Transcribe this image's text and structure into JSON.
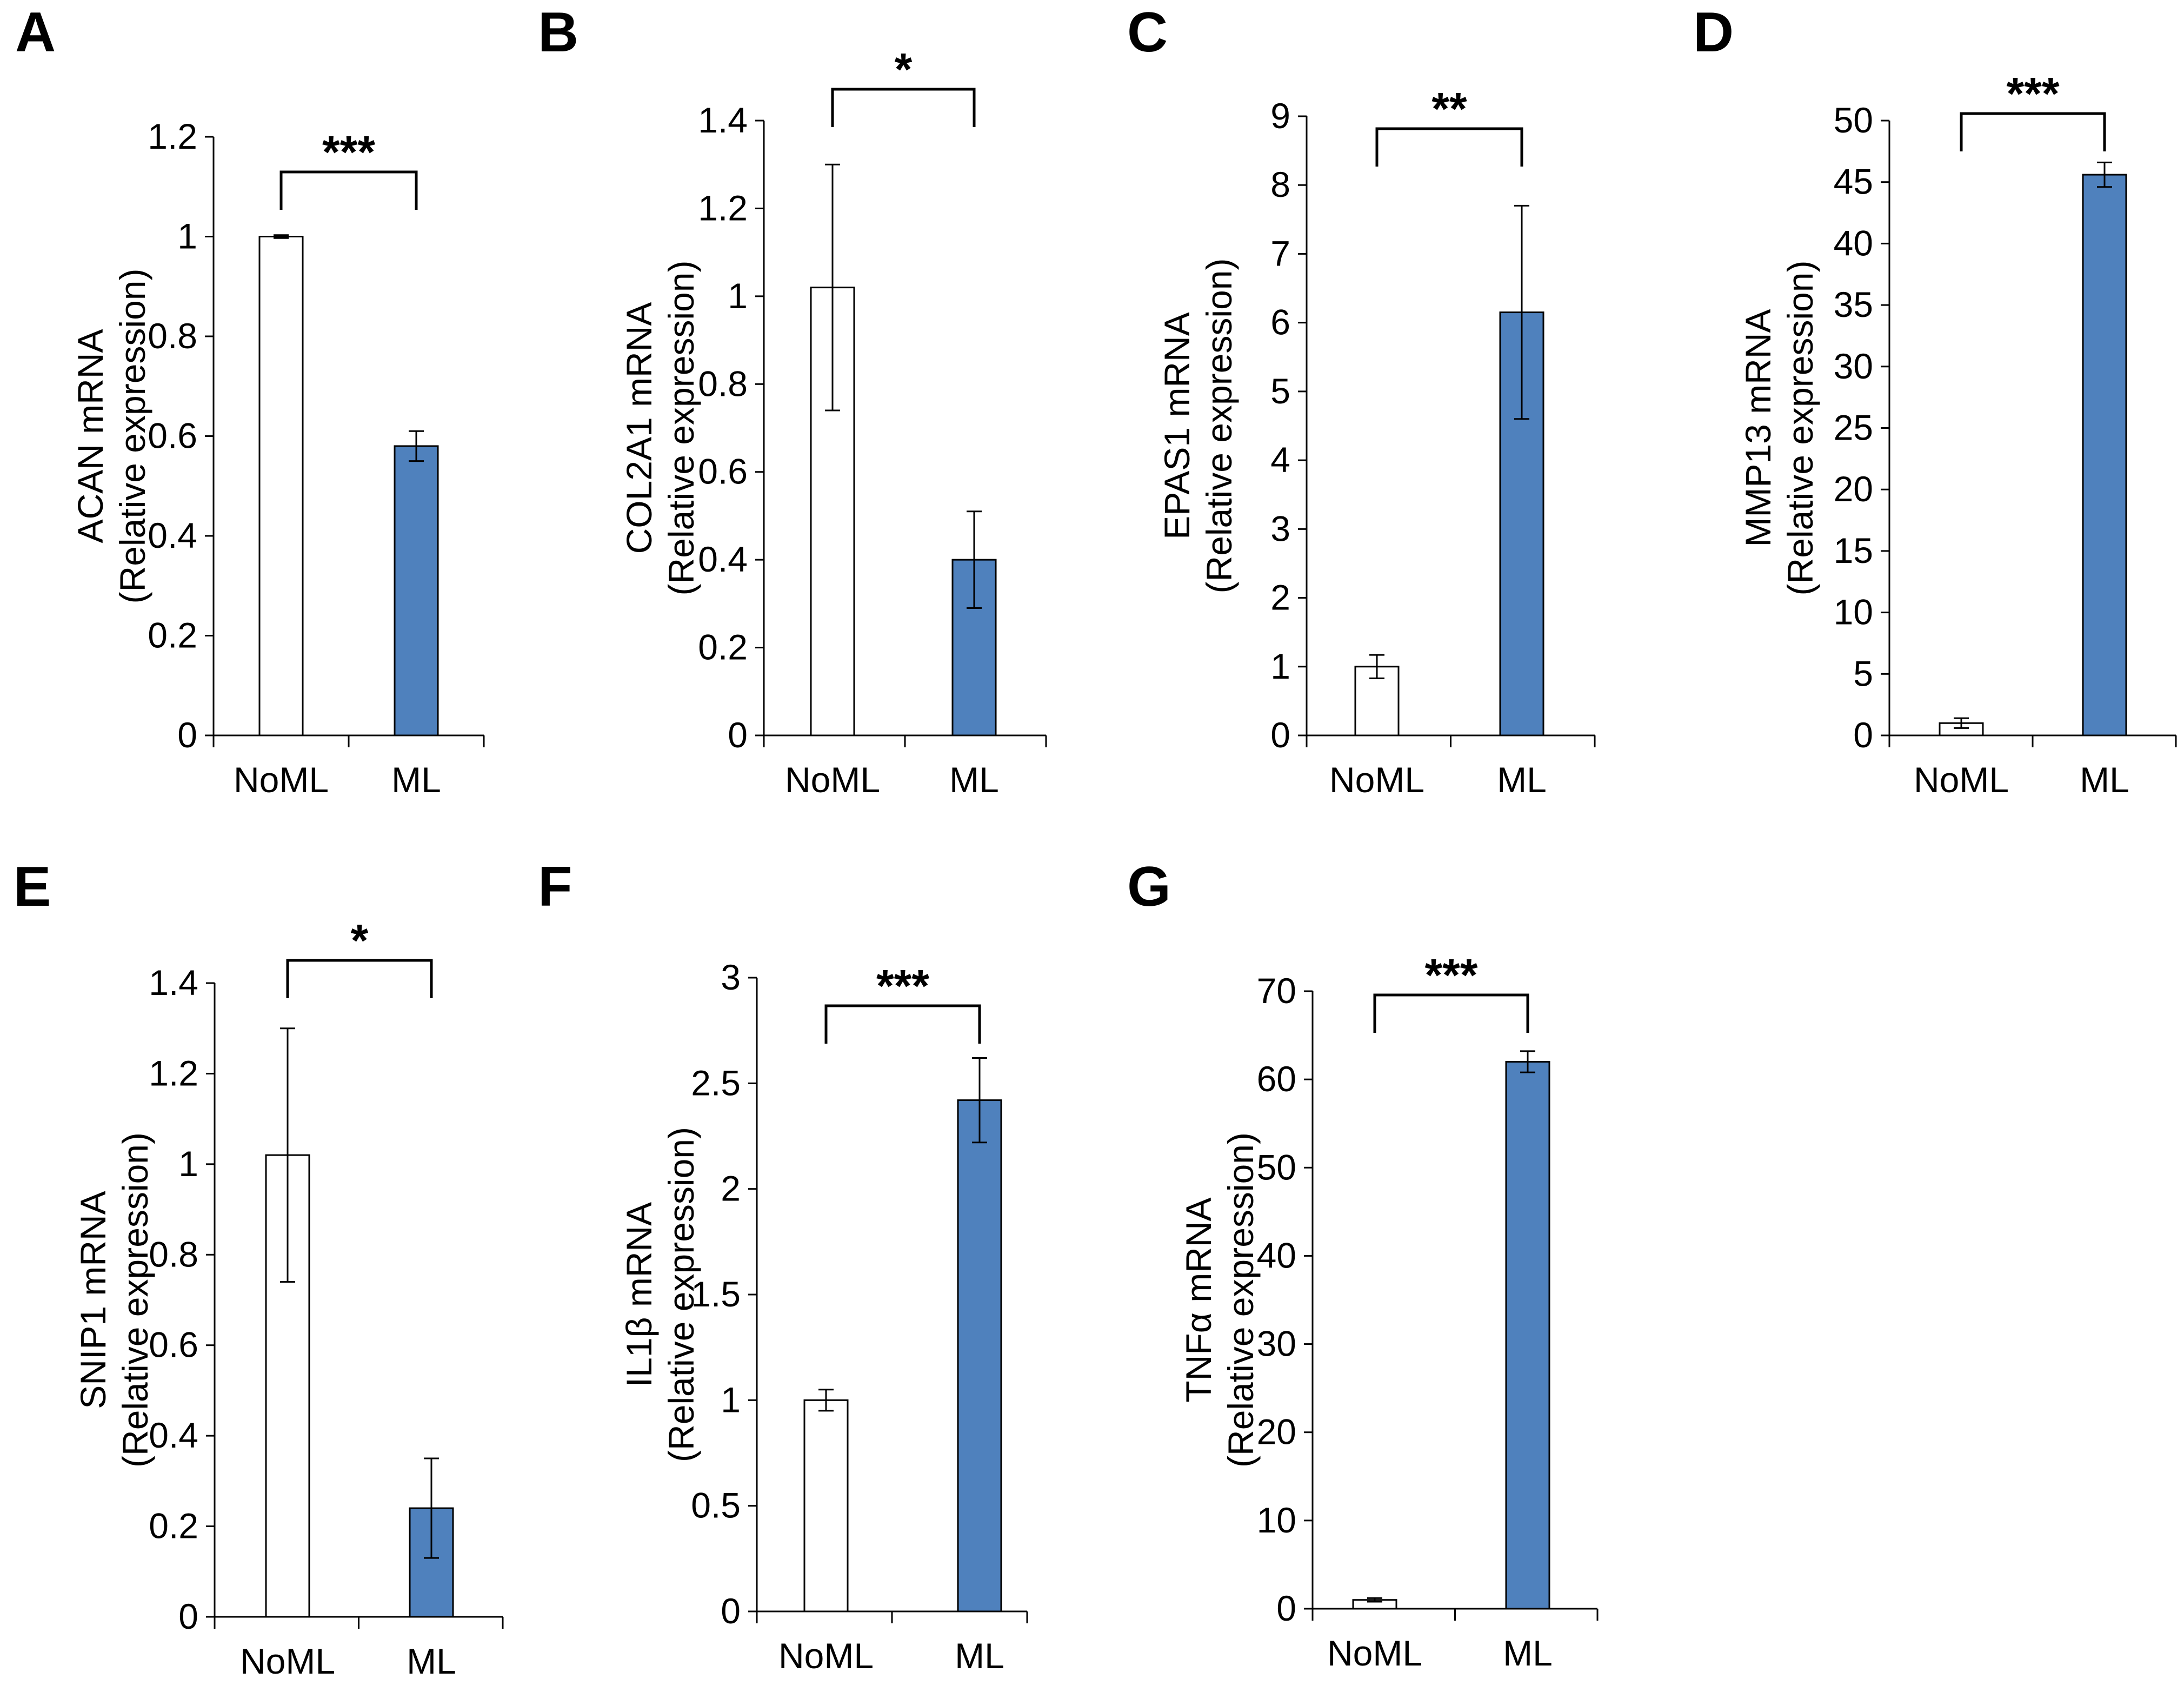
{
  "colors": {
    "noml": "#ffffff",
    "ml": "#4f81bd",
    "stroke": "#000000"
  },
  "chart_data": [
    {
      "panel": "A",
      "type": "bar",
      "categories": [
        "NoML",
        "ML"
      ],
      "values": [
        1.0,
        0.58
      ],
      "errors": [
        0.003,
        0.03
      ],
      "ylim": [
        0,
        1.2
      ],
      "yticks": [
        "0",
        "0.2",
        "0.4",
        "0.6",
        "0.8",
        "1",
        "1.2"
      ],
      "ylabel": [
        "ACAN mRNA",
        "(Relative expression)"
      ],
      "significance": "***"
    },
    {
      "panel": "B",
      "type": "bar",
      "categories": [
        "NoML",
        "ML"
      ],
      "values": [
        1.02,
        0.4
      ],
      "errors": [
        0.28,
        0.11
      ],
      "ylim": [
        0,
        1.4
      ],
      "yticks": [
        "0",
        "0.2",
        "0.4",
        "0.6",
        "0.8",
        "1",
        "1.2",
        "1.4"
      ],
      "ylabel": [
        "COL2A1 mRNA",
        "(Relative expression)"
      ],
      "significance": "*"
    },
    {
      "panel": "C",
      "type": "bar",
      "categories": [
        "NoML",
        "ML"
      ],
      "values": [
        1.0,
        6.15
      ],
      "errors": [
        0.17,
        1.55
      ],
      "ylim": [
        0,
        9
      ],
      "yticks": [
        "0",
        "1",
        "2",
        "3",
        "4",
        "5",
        "6",
        "7",
        "8",
        "9"
      ],
      "ylabel": [
        "EPAS1 mRNA",
        "(Relative expression)"
      ],
      "significance": "**"
    },
    {
      "panel": "D",
      "type": "bar",
      "categories": [
        "NoML",
        "ML"
      ],
      "values": [
        1.0,
        45.6
      ],
      "errors": [
        0.4,
        1.0
      ],
      "ylim": [
        0,
        50
      ],
      "yticks": [
        "0",
        "5",
        "10",
        "15",
        "20",
        "25",
        "30",
        "35",
        "40",
        "45",
        "50"
      ],
      "ylabel": [
        "MMP13 mRNA",
        "(Relative expression)"
      ],
      "significance": "***"
    },
    {
      "panel": "E",
      "type": "bar",
      "categories": [
        "NoML",
        "ML"
      ],
      "values": [
        1.02,
        0.24
      ],
      "errors": [
        0.28,
        0.11
      ],
      "ylim": [
        0,
        1.4
      ],
      "yticks": [
        "0",
        "0.2",
        "0.4",
        "0.6",
        "0.8",
        "1",
        "1.2",
        "1.4"
      ],
      "ylabel": [
        "SNIP1 mRNA",
        "(Relative expression)"
      ],
      "significance": "*"
    },
    {
      "panel": "F",
      "type": "bar",
      "categories": [
        "NoML",
        "ML"
      ],
      "values": [
        1.0,
        2.42
      ],
      "errors": [
        0.05,
        0.2
      ],
      "ylim": [
        0,
        3
      ],
      "yticks": [
        "0",
        "0.5",
        "1",
        "1.5",
        "2",
        "2.5",
        "3"
      ],
      "ylabel": [
        "IL1β mRNA",
        "(Relative expression)"
      ],
      "significance": "***"
    },
    {
      "panel": "G",
      "type": "bar",
      "categories": [
        "NoML",
        "ML"
      ],
      "values": [
        1.0,
        62.0
      ],
      "errors": [
        0.2,
        1.2
      ],
      "ylim": [
        0,
        70
      ],
      "yticks": [
        "0",
        "10",
        "20",
        "30",
        "40",
        "50",
        "60",
        "70"
      ],
      "ylabel": [
        "TNFα mRNA",
        "(Relative expression)"
      ],
      "significance": "***"
    }
  ]
}
